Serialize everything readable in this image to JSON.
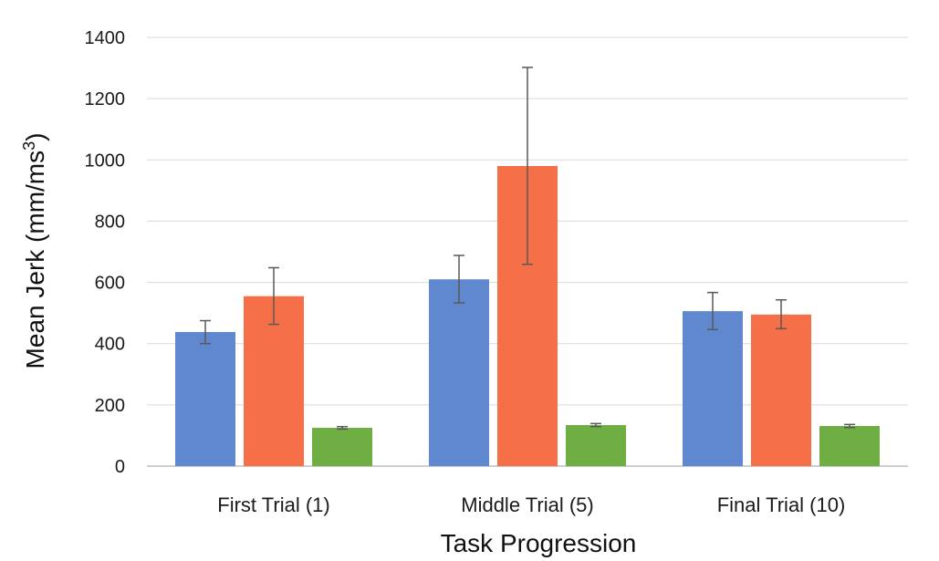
{
  "chart_data": {
    "type": "bar",
    "title": "",
    "xlabel": "Task Progression",
    "ylabel_main": "Mean Jerk (mm/ms",
    "ylabel_sup": "3",
    "ylabel_tail": ")",
    "ylim": [
      0,
      1400
    ],
    "yticks": [
      0,
      200,
      400,
      600,
      800,
      1000,
      1200,
      1400
    ],
    "grid": true,
    "legend": "none",
    "categories": [
      "First Trial (1)",
      "Middle Trial (5)",
      "Final Trial (10)"
    ],
    "series": [
      {
        "color": "#6088CF",
        "values": [
          438,
          610,
          506
        ],
        "err_low": [
          400,
          533,
          446
        ],
        "err_high": [
          475,
          688,
          567
        ]
      },
      {
        "color": "#F57048",
        "values": [
          555,
          980,
          495
        ],
        "err_low": [
          463,
          659,
          449
        ],
        "err_high": [
          648,
          1302,
          543
        ]
      },
      {
        "color": "#6FAE43",
        "values": [
          125,
          134,
          131
        ],
        "err_low": [
          121,
          129,
          126
        ],
        "err_high": [
          129,
          139,
          136
        ]
      }
    ],
    "grid_color": "#d9d9d9",
    "axis_color": "#bfbfbf",
    "errorbar_color": "#595959"
  }
}
